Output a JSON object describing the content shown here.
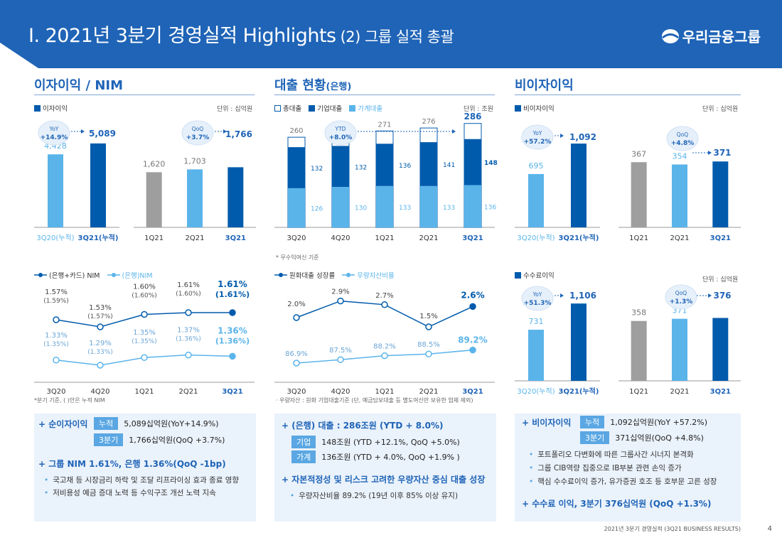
{
  "header": {
    "title": "I. 2021년 3분기 경영실적 Highlights",
    "subtitle": "(2) 그룹 실적 총괄",
    "brand": "우리금융그룹"
  },
  "colors": {
    "dark": "#005bac",
    "light": "#5ab4ea",
    "gray": "#9e9e9e",
    "accent": "#1f64b7"
  },
  "sections": {
    "s1": {
      "title": "이자이익 / NIM"
    },
    "s2": {
      "title": "대출 현황",
      "title_suffix": "(은행)"
    },
    "s3": {
      "title": "비이자이익"
    }
  },
  "panel1": {
    "legend": "이자이익",
    "unit": "단위 : 십억원",
    "yoy_badge": [
      "YoY",
      "+14.9%"
    ],
    "qoq_badge": [
      "QoQ",
      "+3.7%"
    ]
  },
  "panel2": {
    "legend": [
      "총대출",
      "기업대출",
      "가계대출"
    ],
    "unit": "단위 : 조원",
    "ytd_badge": [
      "YTD",
      "+8.0%"
    ],
    "note": "* 무수익여신 기준"
  },
  "panel3": {
    "legend": "비이자이익",
    "unit": "단위 : 십억원",
    "yoy_badge": [
      "YoY",
      "+57.2%"
    ],
    "qoq_badge": [
      "QoQ",
      "+4.8%"
    ]
  },
  "panel4": {
    "legend": [
      "(은행+카드) NIM",
      "(은행)NIM"
    ],
    "note": "*분기 기준, ( )안은 누적 NIM"
  },
  "panel5": {
    "legend": [
      "원화대출 성장률",
      "우량자산비율"
    ],
    "note": "· 우량자산 : 원화 기업대출기준 (단, 예금담보대출 등 별도여신만 보유한 업체 제외)"
  },
  "panel6": {
    "legend": "수수료이익",
    "unit": "단위 : 십억원",
    "yoy_badge": [
      "YoY",
      "+51.3%"
    ],
    "qoq_badge": [
      "QoQ",
      "+1.3%"
    ]
  },
  "chart_data": [
    {
      "type": "bar",
      "id": "interest-cum",
      "categories": [
        "3Q20(누적)",
        "3Q21(누적)"
      ],
      "values": [
        4428,
        5089
      ],
      "labels": [
        "4,428",
        "5,089"
      ],
      "ylim": [
        0,
        5600
      ]
    },
    {
      "type": "bar",
      "id": "interest-q",
      "categories": [
        "1Q21",
        "2Q21",
        "3Q21"
      ],
      "values": [
        1620,
        1703,
        1766
      ],
      "labels": [
        "1,620",
        "1,703",
        "1,766"
      ],
      "ylim": [
        0,
        2400
      ]
    },
    {
      "type": "bar",
      "id": "loans",
      "stacked": true,
      "categories": [
        "3Q20",
        "4Q20",
        "1Q21",
        "2Q21",
        "3Q21"
      ],
      "series": [
        {
          "name": "가계대출",
          "values": [
            126,
            130,
            133,
            133,
            136
          ]
        },
        {
          "name": "기업대출",
          "values": [
            132,
            132,
            136,
            141,
            148
          ]
        }
      ],
      "totals": [
        260,
        265,
        271,
        276,
        286
      ],
      "ylim": [
        0,
        320
      ]
    },
    {
      "type": "line",
      "id": "nim",
      "categories": [
        "3Q20",
        "4Q20",
        "1Q21",
        "2Q21",
        "3Q21"
      ],
      "series": [
        {
          "name": "(은행+카드) NIM",
          "values": [
            1.57,
            1.53,
            1.6,
            1.61,
            1.61
          ],
          "labels": [
            "1.57%",
            "1.53%",
            "1.60%",
            "1.61%",
            "1.61%"
          ],
          "sub_labels": [
            "(1.59%)",
            "(1.57%)",
            "(1.60%)",
            "(1.60%)",
            "(1.61%)"
          ]
        },
        {
          "name": "(은행)NIM",
          "values": [
            1.33,
            1.29,
            1.35,
            1.37,
            1.36
          ],
          "labels": [
            "1.33%",
            "1.29%",
            "1.35%",
            "1.37%",
            "1.36%"
          ],
          "sub_labels": [
            "(1.35%)",
            "(1.33%)",
            "(1.35%)",
            "(1.36%)",
            "(1.36%)"
          ]
        }
      ]
    },
    {
      "type": "line",
      "id": "growth",
      "categories": [
        "3Q20",
        "4Q20",
        "1Q21",
        "2Q21",
        "3Q21"
      ],
      "series": [
        {
          "name": "원화대출 성장률",
          "values": [
            2.0,
            2.9,
            2.7,
            1.5,
            2.6
          ],
          "labels": [
            "2.0%",
            "2.9%",
            "2.7%",
            "1.5%",
            "2.6%"
          ]
        },
        {
          "name": "우량자산비율",
          "values": [
            86.9,
            87.5,
            88.2,
            88.5,
            89.2
          ],
          "labels": [
            "86.9%",
            "87.5%",
            "88.2%",
            "88.5%",
            "89.2%"
          ]
        }
      ]
    },
    {
      "type": "bar",
      "id": "noninterest-cum",
      "categories": [
        "3Q20(누적)",
        "3Q21(누적)"
      ],
      "values": [
        695,
        1092
      ],
      "labels": [
        "695",
        "1,092"
      ],
      "ylim": [
        0,
        1250
      ]
    },
    {
      "type": "bar",
      "id": "noninterest-q",
      "categories": [
        "1Q21",
        "2Q21",
        "3Q21"
      ],
      "values": [
        367,
        354,
        371
      ],
      "labels": [
        "367",
        "354",
        "371"
      ],
      "ylim": [
        0,
        480
      ]
    },
    {
      "type": "bar",
      "id": "fee-cum",
      "categories": [
        "3Q20(누적)",
        "3Q21(누적)"
      ],
      "values": [
        731,
        1106
      ],
      "labels": [
        "731",
        "1,106"
      ],
      "ylim": [
        0,
        1250
      ]
    },
    {
      "type": "bar",
      "id": "fee-q",
      "categories": [
        "1Q21",
        "2Q21",
        "3Q21"
      ],
      "values": [
        358,
        371,
        376
      ],
      "labels": [
        "358",
        "371",
        "376"
      ],
      "ylim": [
        0,
        480
      ]
    }
  ],
  "summary1": {
    "head": "+ 순이자이익",
    "tag1": "누적",
    "line1": "5,089십억원(YoY+14.9%)",
    "tag2": "3분기",
    "line2": "1,766십억원(QoQ +3.7%)",
    "head2": "+ 그룹 NIM 1.61%, 은행 1.36%(QoQ -1bp)",
    "bullets": [
      "국고채 등 시장금리 하락 및 조달 리프라이싱 효과 종료 영향",
      "저비용성 예금 증대 노력 등 수익구조 개선 노력 지속"
    ]
  },
  "summary2": {
    "head": "+ (은행) 대출 : 286조원 (YTD + 8.0%)",
    "tag1": "기업",
    "line1": "148조원 (YTD +12.1%, QoQ +5.0%)",
    "tag2": "가계",
    "line2": "136조원 (YTD + 4.0%, QoQ +1.9% )",
    "head2": "+ 자본적정성 및 리스크 고려한 우량자산 중심 대출 성장",
    "bullets": [
      "우량자산비율 89.2% (19년 이후 85% 이상 유지)"
    ]
  },
  "summary3": {
    "head": "+ 비이자이익",
    "tag1": "누적",
    "line1": "1,092십억원(YoY +57.2%)",
    "tag2": "3분기",
    "line2": "371십억원(QoQ +4.8%)",
    "bullets": [
      "포트폴리오 다변화에 따른 그룹사간 시너지 본격화",
      "그룹 CIB역량 집중으로 IB부분 관련 손익 증가",
      "핵심 수수료이익 증가, 유가증권 호조 등 호부문 고른 성장"
    ],
    "head2": "+ 수수료 이익, 3분기 376십억원 (QoQ +1.3%)"
  },
  "footer": {
    "text": "2021년 3분기 경영실적 (3Q21 BUSINESS RESULTS)",
    "page": "4"
  }
}
